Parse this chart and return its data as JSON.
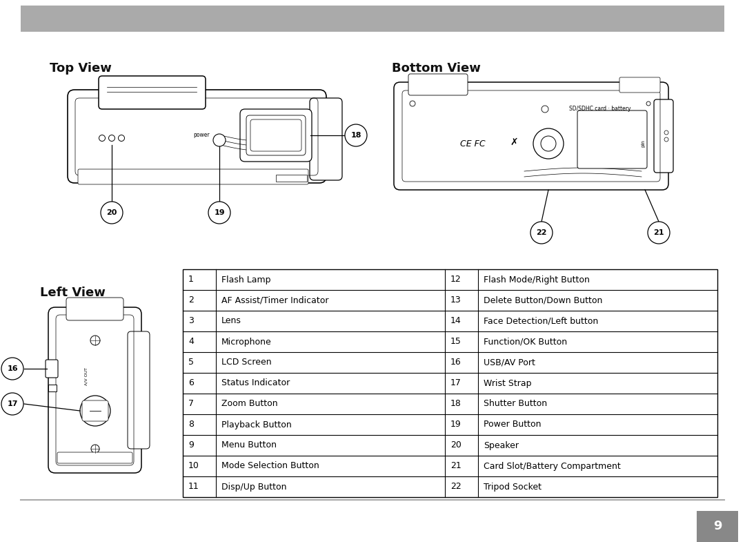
{
  "background_color": "#ffffff",
  "header_bar_color": "#aaaaaa",
  "page_number": "9",
  "page_num_bg": "#888888",
  "top_view_label": "Top View",
  "bottom_view_label": "Bottom View",
  "left_view_label": "Left View",
  "table_data": [
    [
      "1",
      "Flash Lamp",
      "12",
      "Flash Mode/Right Button"
    ],
    [
      "2",
      "AF Assist/Timer Indicator",
      "13",
      "Delete Button/Down Button"
    ],
    [
      "3",
      "Lens",
      "14",
      "Face Detection/Left button"
    ],
    [
      "4",
      "Microphone",
      "15",
      "Function/OK Button"
    ],
    [
      "5",
      "LCD Screen",
      "16",
      "USB/AV Port"
    ],
    [
      "6",
      "Status Indicator",
      "17",
      "Wrist Strap"
    ],
    [
      "7",
      "Zoom Button",
      "18",
      "Shutter Button"
    ],
    [
      "8",
      "Playback Button",
      "19",
      "Power Button"
    ],
    [
      "9",
      "Menu Button",
      "20",
      "Speaker"
    ],
    [
      "10",
      "Mode Selection Button",
      "21",
      "Card Slot/Battery Compartment"
    ],
    [
      "11",
      "Disp/Up Button",
      "22",
      "Tripod Socket"
    ]
  ],
  "lc": "#000000",
  "lw": 0.9
}
